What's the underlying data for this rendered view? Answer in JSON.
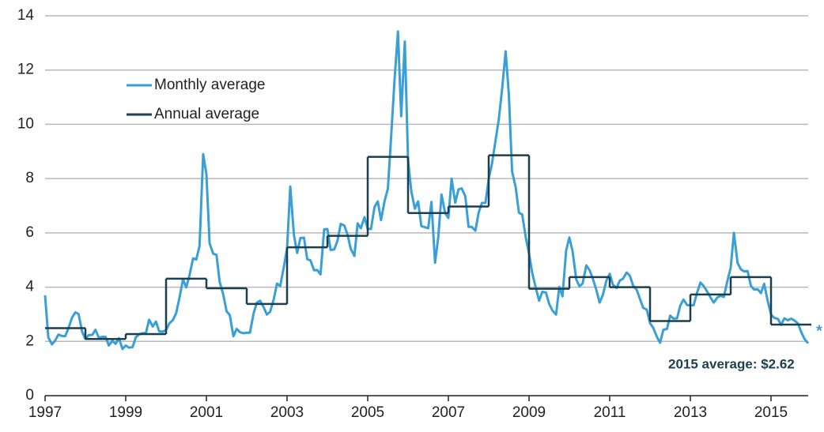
{
  "chart_data": {
    "type": "line",
    "xlim": [
      1997,
      2016
    ],
    "xticks": [
      1997,
      1999,
      2001,
      2003,
      2005,
      2007,
      2009,
      2011,
      2013,
      2015
    ],
    "ylim": [
      0,
      14
    ],
    "yticks": [
      0,
      2,
      4,
      6,
      8,
      10,
      12,
      14
    ],
    "grid": true,
    "legend": "upper left",
    "annotations": [
      "2015 average: $2.62",
      "*"
    ],
    "series": [
      {
        "name": "Monthly average",
        "color": "#3a9fd6",
        "style": "line",
        "x": [
          1997,
          1997.08,
          1997.17,
          1997.25,
          1997.33,
          1997.42,
          1997.5,
          1997.58,
          1997.67,
          1997.75,
          1997.83,
          1997.92,
          1998,
          1998.08,
          1998.17,
          1998.25,
          1998.33,
          1998.42,
          1998.5,
          1998.58,
          1998.67,
          1998.75,
          1998.83,
          1998.92,
          1999,
          1999.08,
          1999.17,
          1999.25,
          1999.33,
          1999.42,
          1999.5,
          1999.58,
          1999.67,
          1999.75,
          1999.83,
          1999.92,
          2000,
          2000.08,
          2000.17,
          2000.25,
          2000.33,
          2000.42,
          2000.5,
          2000.58,
          2000.67,
          2000.75,
          2000.83,
          2000.92,
          2001,
          2001.08,
          2001.17,
          2001.25,
          2001.33,
          2001.42,
          2001.5,
          2001.58,
          2001.67,
          2001.75,
          2001.83,
          2001.92,
          2002,
          2002.08,
          2002.17,
          2002.25,
          2002.33,
          2002.42,
          2002.5,
          2002.58,
          2002.67,
          2002.75,
          2002.83,
          2002.92,
          2003,
          2003.08,
          2003.17,
          2003.25,
          2003.33,
          2003.42,
          2003.5,
          2003.58,
          2003.67,
          2003.75,
          2003.83,
          2003.92,
          2004,
          2004.08,
          2004.17,
          2004.25,
          2004.33,
          2004.42,
          2004.5,
          2004.58,
          2004.67,
          2004.75,
          2004.83,
          2004.92,
          2005,
          2005.08,
          2005.17,
          2005.25,
          2005.33,
          2005.42,
          2005.5,
          2005.58,
          2005.67,
          2005.75,
          2005.83,
          2005.92,
          2006,
          2006.08,
          2006.17,
          2006.25,
          2006.33,
          2006.42,
          2006.5,
          2006.58,
          2006.67,
          2006.75,
          2006.83,
          2006.92,
          2007,
          2007.08,
          2007.17,
          2007.25,
          2007.33,
          2007.42,
          2007.5,
          2007.58,
          2007.67,
          2007.75,
          2007.83,
          2007.92,
          2008,
          2008.08,
          2008.17,
          2008.25,
          2008.33,
          2008.42,
          2008.5,
          2008.58,
          2008.67,
          2008.75,
          2008.83,
          2008.92,
          2009,
          2009.08,
          2009.17,
          2009.25,
          2009.33,
          2009.42,
          2009.5,
          2009.58,
          2009.67,
          2009.75,
          2009.83,
          2009.92,
          2010,
          2010.08,
          2010.17,
          2010.25,
          2010.33,
          2010.42,
          2010.5,
          2010.58,
          2010.67,
          2010.75,
          2010.83,
          2010.92,
          2011,
          2011.08,
          2011.17,
          2011.25,
          2011.33,
          2011.42,
          2011.5,
          2011.58,
          2011.67,
          2011.75,
          2011.83,
          2011.92,
          2012,
          2012.08,
          2012.17,
          2012.25,
          2012.33,
          2012.42,
          2012.5,
          2012.58,
          2012.67,
          2012.75,
          2012.83,
          2012.92,
          2013,
          2013.08,
          2013.17,
          2013.25,
          2013.33,
          2013.42,
          2013.5,
          2013.58,
          2013.67,
          2013.75,
          2013.83,
          2013.92,
          2014,
          2014.08,
          2014.17,
          2014.25,
          2014.33,
          2014.42,
          2014.5,
          2014.58,
          2014.67,
          2014.75,
          2014.83,
          2014.92,
          2015,
          2015.08,
          2015.17,
          2015.25,
          2015.33,
          2015.42,
          2015.5,
          2015.58,
          2015.67,
          2015.75,
          2015.83,
          2015.92
        ],
        "values": [
          3.7,
          2.15,
          1.89,
          2.03,
          2.25,
          2.2,
          2.19,
          2.49,
          2.88,
          3.07,
          3.01,
          2.35,
          2.09,
          2.23,
          2.24,
          2.43,
          2.14,
          2.17,
          2.17,
          1.85,
          2.02,
          1.91,
          2.12,
          1.72,
          1.85,
          1.77,
          1.79,
          2.15,
          2.26,
          2.3,
          2.31,
          2.8,
          2.55,
          2.73,
          2.37,
          2.36,
          2.42,
          2.66,
          2.79,
          3.04,
          3.59,
          4.29,
          3.99,
          4.43,
          5.06,
          5.02,
          5.52,
          8.9,
          8.17,
          5.61,
          5.23,
          5.19,
          4.19,
          3.72,
          3.11,
          2.97,
          2.19,
          2.46,
          2.34,
          2.3,
          2.32,
          2.32,
          3.03,
          3.43,
          3.5,
          3.26,
          2.99,
          3.09,
          3.55,
          4.13,
          4.04,
          4.74,
          5.43,
          7.71,
          5.93,
          5.26,
          5.81,
          5.82,
          5.03,
          4.99,
          4.62,
          4.63,
          4.47,
          6.13,
          6.14,
          5.37,
          5.39,
          5.71,
          6.33,
          6.27,
          5.93,
          5.41,
          5.15,
          6.35,
          6.17,
          6.58,
          6.15,
          6.14,
          6.96,
          7.16,
          6.47,
          7.18,
          7.63,
          9.53,
          11.75,
          13.42,
          10.3,
          13.05,
          8.69,
          7.54,
          6.89,
          7.16,
          6.25,
          6.21,
          6.17,
          7.14,
          4.9,
          5.85,
          7.41,
          6.73,
          6.55,
          8.0,
          7.11,
          7.6,
          7.64,
          7.35,
          6.22,
          6.22,
          6.08,
          6.74,
          7.1,
          7.11,
          7.99,
          8.54,
          9.41,
          10.18,
          11.27,
          12.69,
          11.09,
          8.26,
          7.67,
          6.74,
          6.68,
          5.82,
          5.24,
          4.52,
          3.96,
          3.5,
          3.83,
          3.8,
          3.38,
          3.14,
          2.99,
          4.01,
          3.66,
          5.35,
          5.83,
          5.32,
          4.29,
          4.03,
          4.14,
          4.8,
          4.63,
          4.32,
          3.89,
          3.43,
          3.71,
          4.25,
          4.49,
          4.09,
          3.97,
          4.24,
          4.31,
          4.54,
          4.42,
          4.06,
          3.9,
          3.57,
          3.24,
          3.17,
          2.67,
          2.5,
          2.17,
          1.95,
          2.43,
          2.46,
          2.95,
          2.84,
          2.85,
          3.32,
          3.54,
          3.34,
          3.33,
          3.33,
          3.81,
          4.17,
          4.04,
          3.83,
          3.62,
          3.43,
          3.62,
          3.68,
          3.64,
          4.24,
          4.71,
          6.0,
          4.9,
          4.66,
          4.58,
          4.59,
          4.05,
          3.91,
          3.92,
          3.78,
          4.12,
          3.48,
          2.99,
          2.87,
          2.83,
          2.61,
          2.85,
          2.78,
          2.84,
          2.77,
          2.66,
          2.34,
          2.09,
          1.93
        ]
      },
      {
        "name": "Annual average",
        "color": "#1b3f4f",
        "style": "step",
        "x": [
          1997,
          1998,
          1999,
          2000,
          2001,
          2002,
          2003,
          2004,
          2005,
          2006,
          2007,
          2008,
          2009,
          2010,
          2011,
          2012,
          2013,
          2014,
          2015
        ],
        "values": [
          2.49,
          2.09,
          2.27,
          4.31,
          3.96,
          3.38,
          5.47,
          5.89,
          8.8,
          6.73,
          6.97,
          8.86,
          3.94,
          4.37,
          4.0,
          2.75,
          3.73,
          4.37,
          2.62
        ]
      }
    ]
  }
}
